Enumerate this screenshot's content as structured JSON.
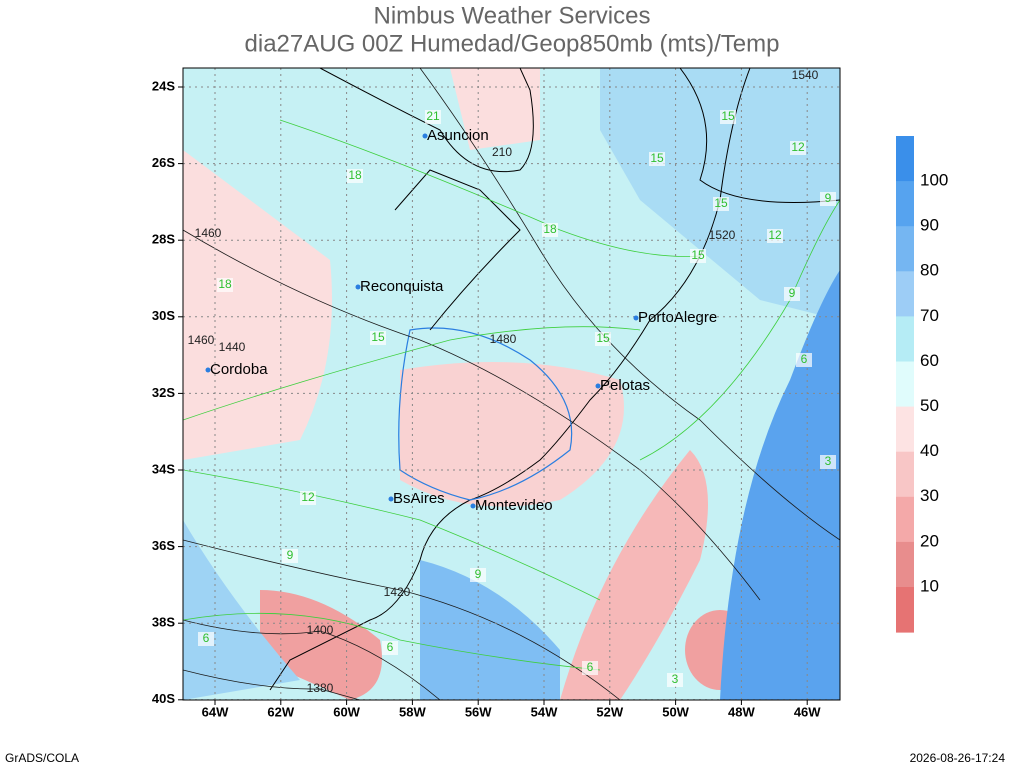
{
  "header": {
    "title_lines": [
      "Nimbus Weather Services",
      "dia27AUG 00Z Humedad/Geop850mb (mts)/Temp"
    ]
  },
  "map": {
    "lat_labels": [
      "24S",
      "26S",
      "28S",
      "30S",
      "32S",
      "34S",
      "36S",
      "38S",
      "40S"
    ],
    "lon_labels": [
      "64W",
      "62W",
      "60W",
      "58W",
      "56W",
      "54W",
      "52W",
      "50W",
      "48W",
      "46W"
    ],
    "cities": [
      "Asuncion",
      "Reconquista",
      "Cordoba",
      "PortoAlegre",
      "Pelotas",
      "BsAires",
      "Montevideo"
    ],
    "height_contour_labels": [
      "1540",
      "1520",
      "1480",
      "1460",
      "1460",
      "1440",
      "1420",
      "1400",
      "1380",
      "210"
    ],
    "temp_contour_labels": [
      "21",
      "18",
      "18",
      "18",
      "15",
      "15",
      "15",
      "15",
      "15",
      "15",
      "12",
      "12",
      "12",
      "9",
      "9",
      "9",
      "9",
      "6",
      "6",
      "6",
      "6",
      "3",
      "3"
    ]
  },
  "colorbar": {
    "labels": [
      100,
      90,
      80,
      70,
      60,
      50,
      40,
      30,
      20,
      10
    ]
  },
  "footer": {
    "left": "GrADS/COLA",
    "right": "2026-08-26-17:24"
  }
}
